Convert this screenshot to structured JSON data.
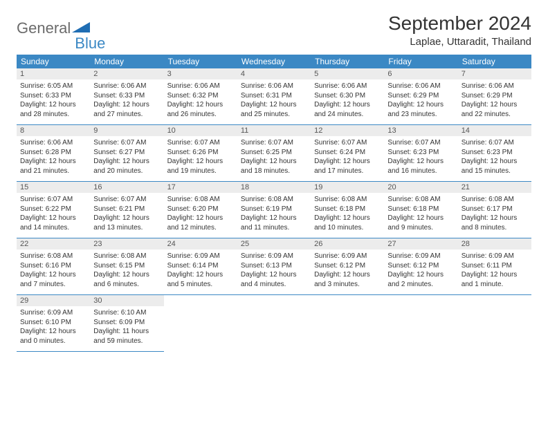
{
  "logo": {
    "text1": "General",
    "text2": "Blue"
  },
  "title": "September 2024",
  "location": "Laplae, Uttaradit, Thailand",
  "colors": {
    "header_bg": "#3b88c4",
    "header_text": "#ffffff",
    "daynum_bg": "#ececec",
    "border": "#3b88c4",
    "logo_gray": "#6b6b6b",
    "logo_blue": "#3b88c4"
  },
  "day_labels": [
    "Sunday",
    "Monday",
    "Tuesday",
    "Wednesday",
    "Thursday",
    "Friday",
    "Saturday"
  ],
  "weeks": [
    [
      {
        "n": "1",
        "sunrise": "Sunrise: 6:05 AM",
        "sunset": "Sunset: 6:33 PM",
        "dl1": "Daylight: 12 hours",
        "dl2": "and 28 minutes."
      },
      {
        "n": "2",
        "sunrise": "Sunrise: 6:06 AM",
        "sunset": "Sunset: 6:33 PM",
        "dl1": "Daylight: 12 hours",
        "dl2": "and 27 minutes."
      },
      {
        "n": "3",
        "sunrise": "Sunrise: 6:06 AM",
        "sunset": "Sunset: 6:32 PM",
        "dl1": "Daylight: 12 hours",
        "dl2": "and 26 minutes."
      },
      {
        "n": "4",
        "sunrise": "Sunrise: 6:06 AM",
        "sunset": "Sunset: 6:31 PM",
        "dl1": "Daylight: 12 hours",
        "dl2": "and 25 minutes."
      },
      {
        "n": "5",
        "sunrise": "Sunrise: 6:06 AM",
        "sunset": "Sunset: 6:30 PM",
        "dl1": "Daylight: 12 hours",
        "dl2": "and 24 minutes."
      },
      {
        "n": "6",
        "sunrise": "Sunrise: 6:06 AM",
        "sunset": "Sunset: 6:29 PM",
        "dl1": "Daylight: 12 hours",
        "dl2": "and 23 minutes."
      },
      {
        "n": "7",
        "sunrise": "Sunrise: 6:06 AM",
        "sunset": "Sunset: 6:29 PM",
        "dl1": "Daylight: 12 hours",
        "dl2": "and 22 minutes."
      }
    ],
    [
      {
        "n": "8",
        "sunrise": "Sunrise: 6:06 AM",
        "sunset": "Sunset: 6:28 PM",
        "dl1": "Daylight: 12 hours",
        "dl2": "and 21 minutes."
      },
      {
        "n": "9",
        "sunrise": "Sunrise: 6:07 AM",
        "sunset": "Sunset: 6:27 PM",
        "dl1": "Daylight: 12 hours",
        "dl2": "and 20 minutes."
      },
      {
        "n": "10",
        "sunrise": "Sunrise: 6:07 AM",
        "sunset": "Sunset: 6:26 PM",
        "dl1": "Daylight: 12 hours",
        "dl2": "and 19 minutes."
      },
      {
        "n": "11",
        "sunrise": "Sunrise: 6:07 AM",
        "sunset": "Sunset: 6:25 PM",
        "dl1": "Daylight: 12 hours",
        "dl2": "and 18 minutes."
      },
      {
        "n": "12",
        "sunrise": "Sunrise: 6:07 AM",
        "sunset": "Sunset: 6:24 PM",
        "dl1": "Daylight: 12 hours",
        "dl2": "and 17 minutes."
      },
      {
        "n": "13",
        "sunrise": "Sunrise: 6:07 AM",
        "sunset": "Sunset: 6:23 PM",
        "dl1": "Daylight: 12 hours",
        "dl2": "and 16 minutes."
      },
      {
        "n": "14",
        "sunrise": "Sunrise: 6:07 AM",
        "sunset": "Sunset: 6:23 PM",
        "dl1": "Daylight: 12 hours",
        "dl2": "and 15 minutes."
      }
    ],
    [
      {
        "n": "15",
        "sunrise": "Sunrise: 6:07 AM",
        "sunset": "Sunset: 6:22 PM",
        "dl1": "Daylight: 12 hours",
        "dl2": "and 14 minutes."
      },
      {
        "n": "16",
        "sunrise": "Sunrise: 6:07 AM",
        "sunset": "Sunset: 6:21 PM",
        "dl1": "Daylight: 12 hours",
        "dl2": "and 13 minutes."
      },
      {
        "n": "17",
        "sunrise": "Sunrise: 6:08 AM",
        "sunset": "Sunset: 6:20 PM",
        "dl1": "Daylight: 12 hours",
        "dl2": "and 12 minutes."
      },
      {
        "n": "18",
        "sunrise": "Sunrise: 6:08 AM",
        "sunset": "Sunset: 6:19 PM",
        "dl1": "Daylight: 12 hours",
        "dl2": "and 11 minutes."
      },
      {
        "n": "19",
        "sunrise": "Sunrise: 6:08 AM",
        "sunset": "Sunset: 6:18 PM",
        "dl1": "Daylight: 12 hours",
        "dl2": "and 10 minutes."
      },
      {
        "n": "20",
        "sunrise": "Sunrise: 6:08 AM",
        "sunset": "Sunset: 6:18 PM",
        "dl1": "Daylight: 12 hours",
        "dl2": "and 9 minutes."
      },
      {
        "n": "21",
        "sunrise": "Sunrise: 6:08 AM",
        "sunset": "Sunset: 6:17 PM",
        "dl1": "Daylight: 12 hours",
        "dl2": "and 8 minutes."
      }
    ],
    [
      {
        "n": "22",
        "sunrise": "Sunrise: 6:08 AM",
        "sunset": "Sunset: 6:16 PM",
        "dl1": "Daylight: 12 hours",
        "dl2": "and 7 minutes."
      },
      {
        "n": "23",
        "sunrise": "Sunrise: 6:08 AM",
        "sunset": "Sunset: 6:15 PM",
        "dl1": "Daylight: 12 hours",
        "dl2": "and 6 minutes."
      },
      {
        "n": "24",
        "sunrise": "Sunrise: 6:09 AM",
        "sunset": "Sunset: 6:14 PM",
        "dl1": "Daylight: 12 hours",
        "dl2": "and 5 minutes."
      },
      {
        "n": "25",
        "sunrise": "Sunrise: 6:09 AM",
        "sunset": "Sunset: 6:13 PM",
        "dl1": "Daylight: 12 hours",
        "dl2": "and 4 minutes."
      },
      {
        "n": "26",
        "sunrise": "Sunrise: 6:09 AM",
        "sunset": "Sunset: 6:12 PM",
        "dl1": "Daylight: 12 hours",
        "dl2": "and 3 minutes."
      },
      {
        "n": "27",
        "sunrise": "Sunrise: 6:09 AM",
        "sunset": "Sunset: 6:12 PM",
        "dl1": "Daylight: 12 hours",
        "dl2": "and 2 minutes."
      },
      {
        "n": "28",
        "sunrise": "Sunrise: 6:09 AM",
        "sunset": "Sunset: 6:11 PM",
        "dl1": "Daylight: 12 hours",
        "dl2": "and 1 minute."
      }
    ],
    [
      {
        "n": "29",
        "sunrise": "Sunrise: 6:09 AM",
        "sunset": "Sunset: 6:10 PM",
        "dl1": "Daylight: 12 hours",
        "dl2": "and 0 minutes."
      },
      {
        "n": "30",
        "sunrise": "Sunrise: 6:10 AM",
        "sunset": "Sunset: 6:09 PM",
        "dl1": "Daylight: 11 hours",
        "dl2": "and 59 minutes."
      },
      null,
      null,
      null,
      null,
      null
    ]
  ]
}
